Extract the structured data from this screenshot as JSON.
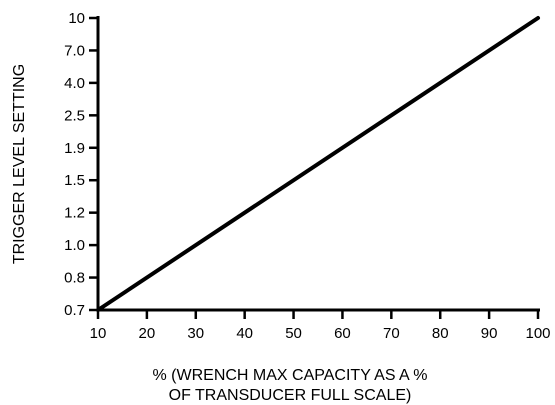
{
  "chart_data": {
    "type": "line",
    "title": "",
    "xlabel_lines": [
      "% (WRENCH MAX CAPACITY AS A %",
      "OF TRANSDUCER FULL SCALE)"
    ],
    "ylabel": "TRIGGER LEVEL SETTING",
    "x_ticks": [
      "10",
      "20",
      "30",
      "40",
      "50",
      "60",
      "70",
      "80",
      "90",
      "100"
    ],
    "y_ticks": [
      "0.7",
      "0.8",
      "1.0",
      "1.2",
      "1.5",
      "1.9",
      "2.5",
      "4.0",
      "7.0",
      "10"
    ],
    "xlim": [
      10,
      100
    ],
    "y_scale": "categorical-evenly-spaced",
    "grid": false,
    "series": [
      {
        "x": [
          10,
          100
        ],
        "y_tick_index": [
          0,
          9
        ],
        "y": [
          0.7,
          10
        ]
      }
    ]
  }
}
